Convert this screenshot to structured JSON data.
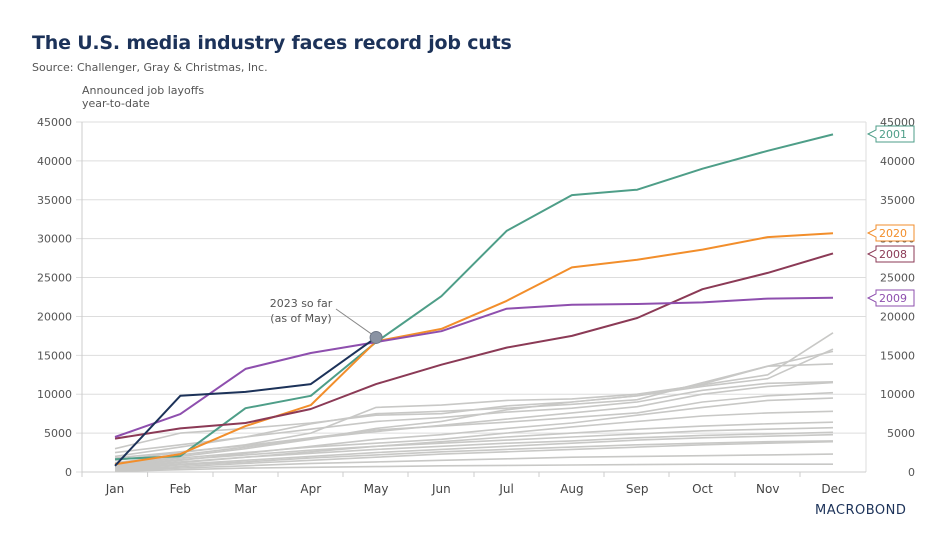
{
  "header": {
    "title": "The U.S. media industry faces record job cuts",
    "source": "Source: Challenger, Gray & Christmas, Inc.",
    "ylabel_line1": "Announced job layoffs",
    "ylabel_line2": "year-to-date",
    "logo": "MACROBOND"
  },
  "chart_data": {
    "type": "line",
    "title": "The U.S. media industry faces record job cuts",
    "subtitle": "Source: Challenger, Gray & Christmas, Inc.",
    "xlabel": "",
    "ylabel": "Announced job layoffs year-to-date",
    "categories": [
      "Jan",
      "Feb",
      "Mar",
      "Apr",
      "May",
      "Jun",
      "Jul",
      "Aug",
      "Sep",
      "Oct",
      "Nov",
      "Dec"
    ],
    "ylim": [
      0,
      45000
    ],
    "yticks": [
      0,
      5000,
      10000,
      15000,
      20000,
      25000,
      30000,
      35000,
      40000,
      45000
    ],
    "grid": true,
    "annotation": {
      "line1": "2023 so far",
      "line2": "(as of May)",
      "series": "2023",
      "month": "May"
    },
    "series": [
      {
        "name": "2001",
        "color": "#4e9e88",
        "labeled": true,
        "values": [
          1650,
          2050,
          8200,
          9800,
          16700,
          22600,
          31000,
          35600,
          36300,
          39000,
          41300,
          43400
        ]
      },
      {
        "name": "2020",
        "color": "#f28e2b",
        "labeled": true,
        "values": [
          1000,
          2300,
          5900,
          8600,
          16800,
          18400,
          22000,
          26300,
          27300,
          28600,
          30200,
          30700
        ]
      },
      {
        "name": "2008",
        "color": "#8b3a56",
        "labeled": true,
        "values": [
          4300,
          5600,
          6300,
          8100,
          11300,
          13800,
          16000,
          17500,
          19800,
          23500,
          25600,
          28100
        ]
      },
      {
        "name": "2009",
        "color": "#8e4fae",
        "labeled": true,
        "values": [
          4500,
          7450,
          13250,
          15300,
          16700,
          18100,
          21000,
          21500,
          21600,
          21800,
          22300,
          22400
        ]
      },
      {
        "name": "2023",
        "color": "#1c3259",
        "labeled": false,
        "values": [
          800,
          9800,
          10300,
          11300,
          17300
        ]
      },
      {
        "name": "other-1",
        "color": "#c8c8c6",
        "labeled": false,
        "values": [
          1500,
          2500,
          3500,
          5000,
          8300,
          8600,
          9200,
          9400,
          10000,
          11200,
          12500,
          17900
        ]
      },
      {
        "name": "other-2",
        "color": "#c8c8c6",
        "labeled": false,
        "values": [
          1000,
          2000,
          3000,
          4200,
          5600,
          6500,
          8000,
          9000,
          9800,
          11000,
          12000,
          15800
        ]
      },
      {
        "name": "other-3",
        "color": "#c8c8c6",
        "labeled": false,
        "values": [
          2000,
          3200,
          4500,
          6200,
          7500,
          7800,
          8200,
          8700,
          9300,
          11500,
          13600,
          15500
        ]
      },
      {
        "name": "other-4",
        "color": "#c8c8c6",
        "labeled": false,
        "values": [
          3000,
          5000,
          5600,
          6300,
          7300,
          7500,
          8500,
          9000,
          9800,
          11300,
          13600,
          13900
        ]
      },
      {
        "name": "other-5",
        "color": "#c8c8c6",
        "labeled": false,
        "values": [
          2500,
          3500,
          4500,
          5500,
          6500,
          7000,
          7700,
          8200,
          9000,
          10500,
          11400,
          11600
        ]
      },
      {
        "name": "other-6",
        "color": "#c8c8c6",
        "labeled": false,
        "values": [
          1200,
          2200,
          3200,
          4300,
          5200,
          6000,
          6800,
          7600,
          8400,
          10000,
          11000,
          11500
        ]
      },
      {
        "name": "other-7",
        "color": "#c8c8c6",
        "labeled": false,
        "values": [
          1800,
          2600,
          3400,
          4400,
          5400,
          5900,
          6400,
          7000,
          7600,
          9000,
          9800,
          10200
        ]
      },
      {
        "name": "other-8",
        "color": "#c8c8c6",
        "labeled": false,
        "values": [
          800,
          1500,
          2400,
          3300,
          4200,
          4800,
          5600,
          6300,
          7300,
          8300,
          9200,
          9500
        ]
      },
      {
        "name": "other-9",
        "color": "#c8c8c6",
        "labeled": false,
        "values": [
          1000,
          1800,
          2500,
          3200,
          3700,
          4200,
          5000,
          5800,
          6500,
          7200,
          7600,
          7800
        ]
      },
      {
        "name": "other-10",
        "color": "#c8c8c6",
        "labeled": false,
        "values": [
          600,
          1200,
          1900,
          2600,
          3300,
          3900,
          4500,
          5000,
          5500,
          5900,
          6200,
          6400
        ]
      },
      {
        "name": "other-11",
        "color": "#c8c8c6",
        "labeled": false,
        "values": [
          900,
          1600,
          2200,
          2800,
          3300,
          3700,
          4100,
          4500,
          4900,
          5300,
          5500,
          5700
        ]
      },
      {
        "name": "other-12",
        "color": "#c8c8c6",
        "labeled": false,
        "values": [
          700,
          1300,
          1900,
          2400,
          2900,
          3300,
          3700,
          4000,
          4400,
          4700,
          4900,
          5100
        ]
      },
      {
        "name": "other-13",
        "color": "#c8c8c6",
        "labeled": false,
        "values": [
          500,
          1000,
          1500,
          2000,
          2500,
          2900,
          3300,
          3700,
          4100,
          4400,
          4600,
          4800
        ]
      },
      {
        "name": "other-14",
        "color": "#c8c8c6",
        "labeled": false,
        "values": [
          400,
          900,
          1300,
          1800,
          2200,
          2600,
          2900,
          3200,
          3500,
          3700,
          3900,
          4000
        ]
      },
      {
        "name": "other-15",
        "color": "#c8c8c6",
        "labeled": false,
        "values": [
          300,
          700,
          1100,
          1500,
          1900,
          2300,
          2600,
          2900,
          3200,
          3500,
          3700,
          3900
        ]
      },
      {
        "name": "other-16",
        "color": "#c8c8c6",
        "labeled": false,
        "values": [
          200,
          500,
          800,
          1100,
          1300,
          1500,
          1700,
          1900,
          2000,
          2100,
          2200,
          2300
        ]
      },
      {
        "name": "other-17",
        "color": "#c8c8c6",
        "labeled": false,
        "values": [
          100,
          300,
          500,
          600,
          700,
          800,
          850,
          900,
          950,
          1000,
          1000,
          1000
        ]
      }
    ]
  }
}
